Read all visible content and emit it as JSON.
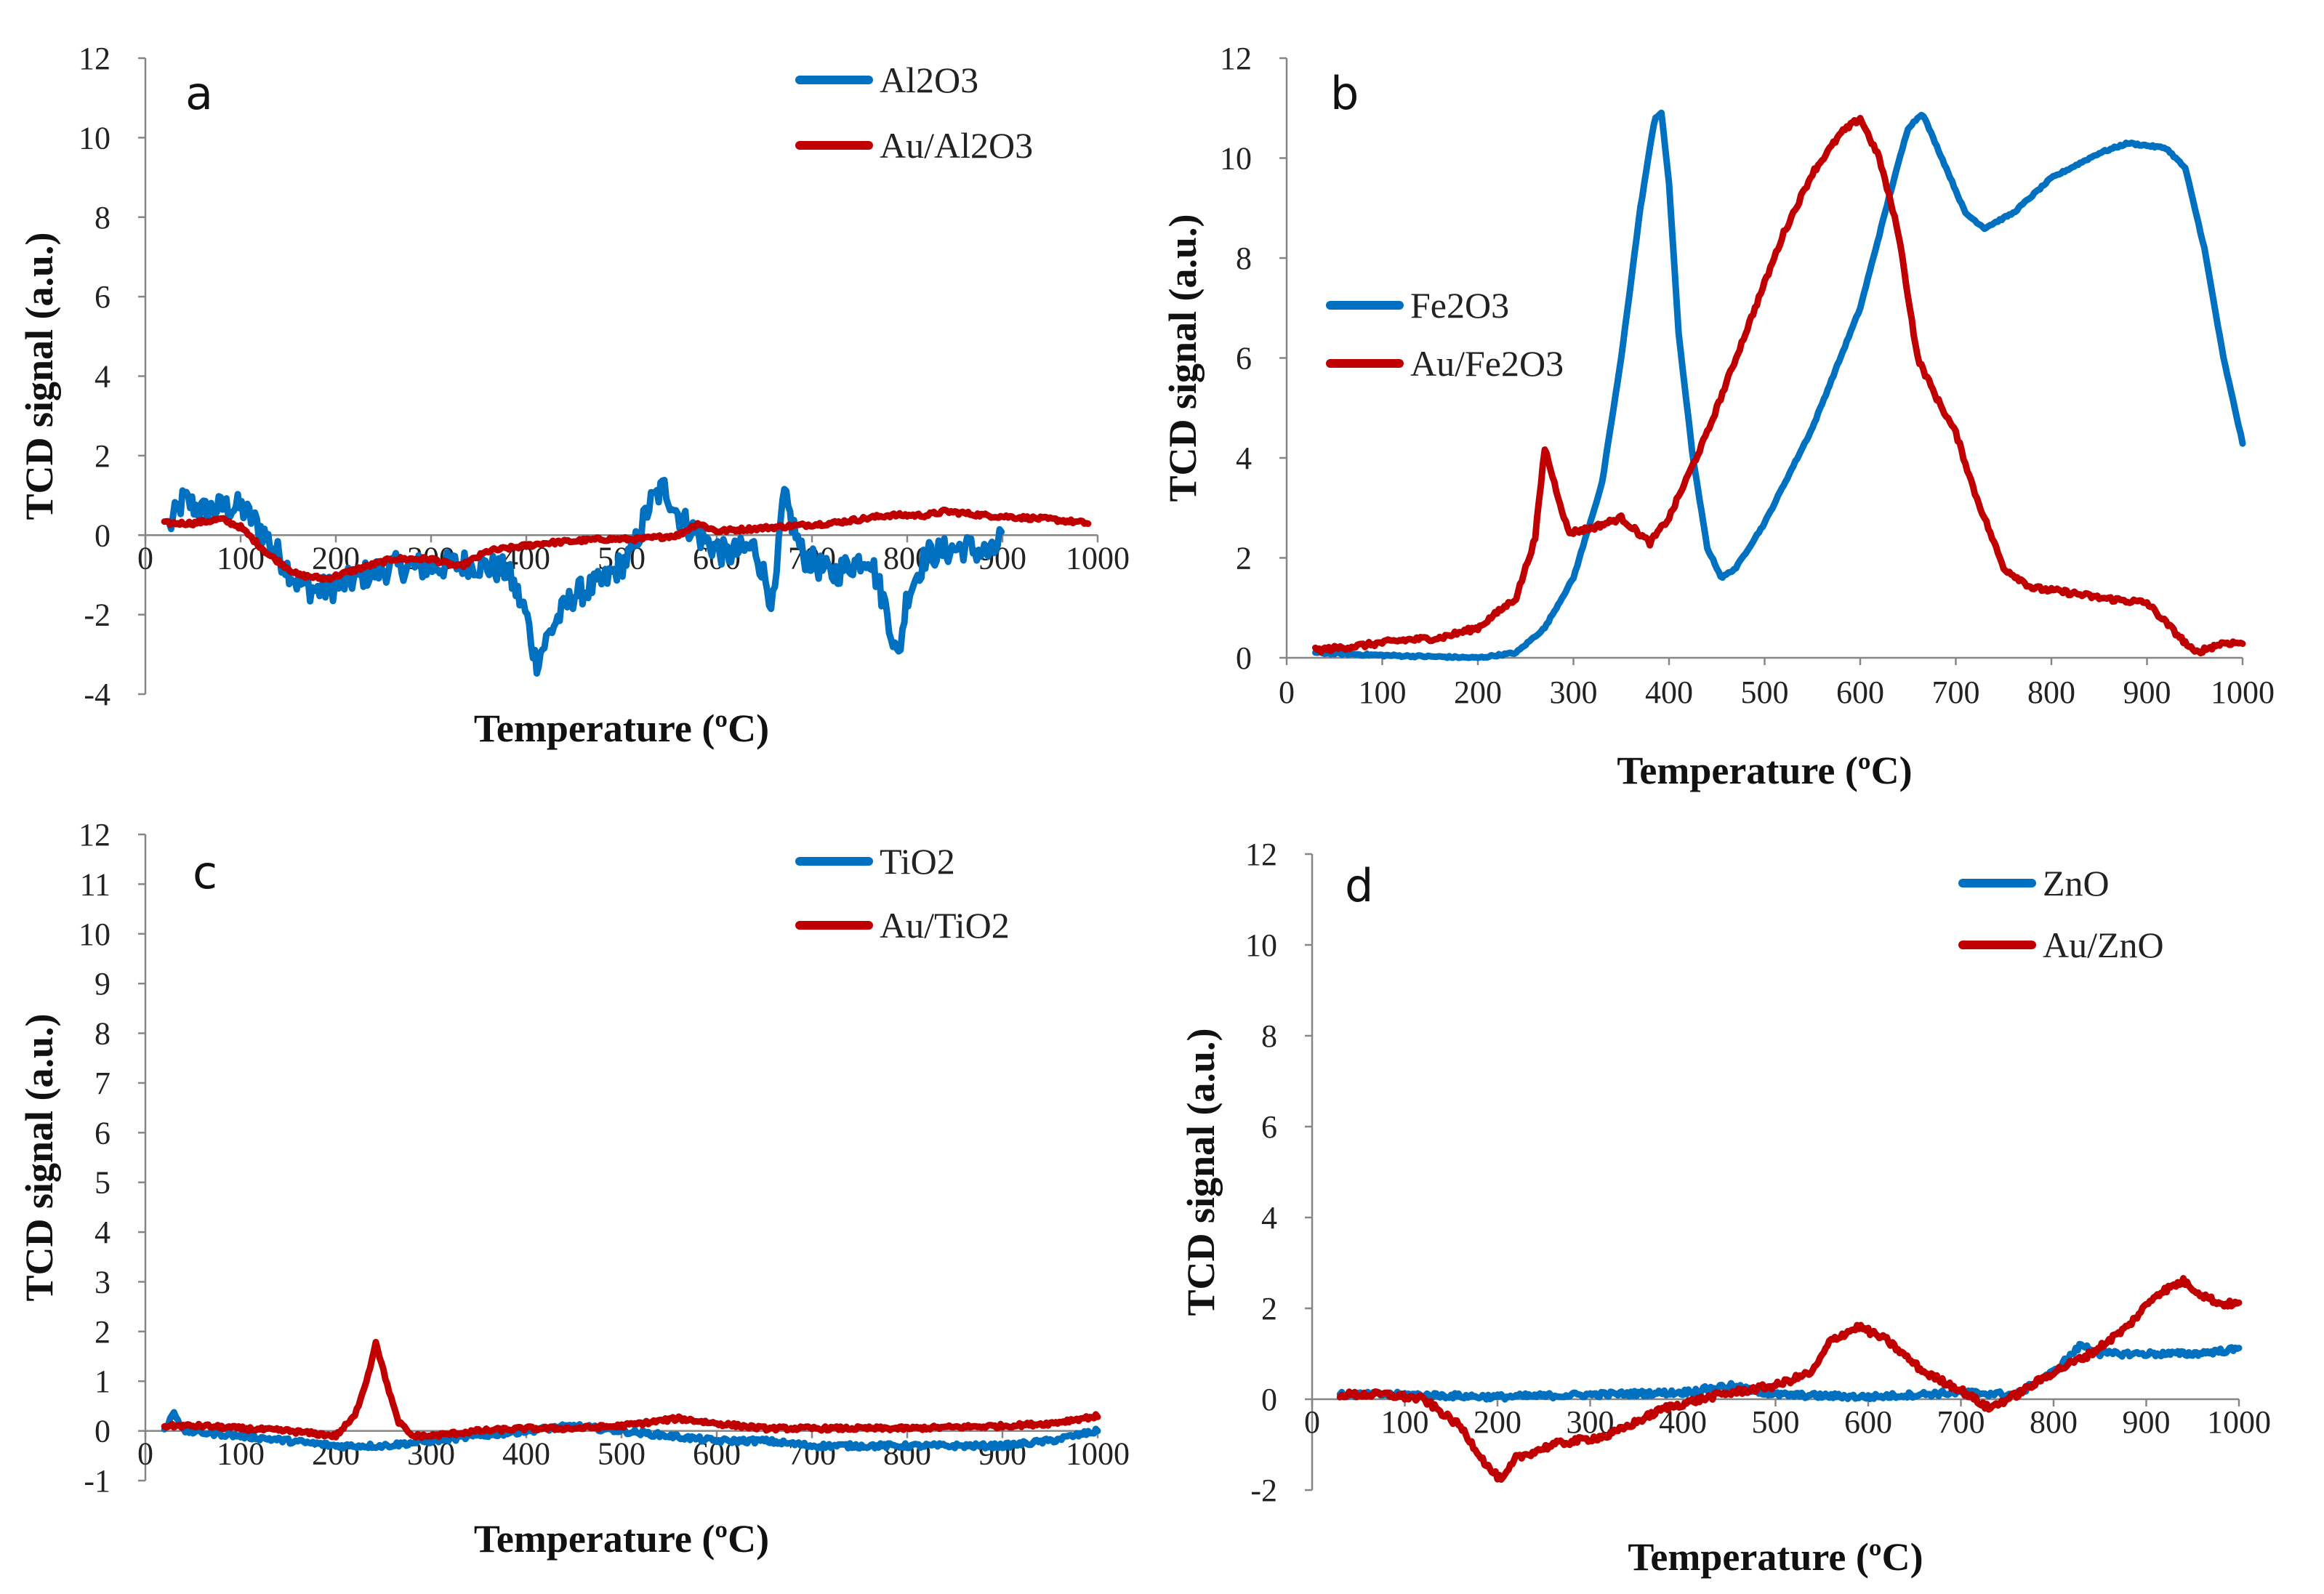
{
  "colors": {
    "blue": "#0070C0",
    "red": "#C00000",
    "axis": "#868686"
  },
  "chart_data": [
    {
      "panel": "a",
      "type": "line",
      "xlabel": "Temperature (ºC)",
      "ylabel": "TCD signal (a.u.)",
      "xlim": [
        0,
        1000
      ],
      "ylim": [
        -4,
        12
      ],
      "x_ticks": [
        0,
        100,
        200,
        300,
        400,
        500,
        600,
        700,
        800,
        900,
        1000
      ],
      "y_ticks": [
        -4,
        -2,
        0,
        2,
        4,
        6,
        8,
        10,
        12
      ],
      "legend_position": "top-right",
      "series": [
        {
          "name": "Al2O3",
          "color": "blue",
          "noise": 0.35,
          "points": [
            [
              25,
              0.2
            ],
            [
              40,
              0.9
            ],
            [
              60,
              0.6
            ],
            [
              80,
              0.7
            ],
            [
              100,
              0.7
            ],
            [
              120,
              0.2
            ],
            [
              140,
              -0.5
            ],
            [
              160,
              -1.2
            ],
            [
              180,
              -1.4
            ],
            [
              200,
              -1.3
            ],
            [
              230,
              -1.0
            ],
            [
              260,
              -0.8
            ],
            [
              300,
              -0.8
            ],
            [
              340,
              -0.7
            ],
            [
              380,
              -0.9
            ],
            [
              400,
              -2.0
            ],
            [
              410,
              -3.2
            ],
            [
              430,
              -2.2
            ],
            [
              450,
              -1.5
            ],
            [
              480,
              -1.2
            ],
            [
              510,
              -0.5
            ],
            [
              530,
              0.8
            ],
            [
              545,
              1.2
            ],
            [
              560,
              0.5
            ],
            [
              580,
              0.0
            ],
            [
              610,
              -0.5
            ],
            [
              640,
              -0.3
            ],
            [
              660,
              -1.8
            ],
            [
              670,
              1.0
            ],
            [
              690,
              -0.5
            ],
            [
              720,
              -1.0
            ],
            [
              760,
              -0.5
            ],
            [
              780,
              -2.0
            ],
            [
              790,
              -3.2
            ],
            [
              800,
              -1.5
            ],
            [
              820,
              -0.5
            ],
            [
              860,
              -0.3
            ],
            [
              890,
              -0.5
            ],
            [
              900,
              0.1
            ]
          ]
        },
        {
          "name": "Au/Al2O3",
          "color": "red",
          "noise": 0.05,
          "points": [
            [
              20,
              0.3
            ],
            [
              50,
              0.3
            ],
            [
              80,
              0.4
            ],
            [
              100,
              0.2
            ],
            [
              130,
              -0.5
            ],
            [
              160,
              -1.0
            ],
            [
              190,
              -1.1
            ],
            [
              230,
              -0.8
            ],
            [
              260,
              -0.6
            ],
            [
              300,
              -0.6
            ],
            [
              330,
              -0.8
            ],
            [
              360,
              -0.4
            ],
            [
              420,
              -0.2
            ],
            [
              480,
              -0.1
            ],
            [
              520,
              -0.1
            ],
            [
              560,
              0.0
            ],
            [
              580,
              0.3
            ],
            [
              600,
              0.1
            ],
            [
              660,
              0.2
            ],
            [
              720,
              0.3
            ],
            [
              780,
              0.5
            ],
            [
              820,
              0.5
            ],
            [
              840,
              0.6
            ],
            [
              880,
              0.5
            ],
            [
              950,
              0.4
            ],
            [
              990,
              0.3
            ]
          ]
        }
      ]
    },
    {
      "panel": "b",
      "type": "line",
      "xlabel": "Temperature (ºC)",
      "ylabel": "TCD signal (a.u.)",
      "xlim": [
        0,
        1000
      ],
      "ylim": [
        0,
        12
      ],
      "x_ticks": [
        0,
        100,
        200,
        300,
        400,
        500,
        600,
        700,
        800,
        900,
        1000
      ],
      "y_ticks": [
        0,
        2,
        4,
        6,
        8,
        10,
        12
      ],
      "legend_position": "middle-left",
      "series": [
        {
          "name": "Fe2O3",
          "color": "blue",
          "noise": 0.02,
          "points": [
            [
              30,
              0.1
            ],
            [
              100,
              0.05
            ],
            [
              200,
              0.0
            ],
            [
              240,
              0.1
            ],
            [
              270,
              0.6
            ],
            [
              300,
              1.6
            ],
            [
              330,
              3.5
            ],
            [
              350,
              6.0
            ],
            [
              370,
              9.0
            ],
            [
              385,
              10.8
            ],
            [
              392,
              10.9
            ],
            [
              400,
              9.5
            ],
            [
              410,
              6.5
            ],
            [
              425,
              4.0
            ],
            [
              440,
              2.2
            ],
            [
              455,
              1.6
            ],
            [
              470,
              1.8
            ],
            [
              500,
              2.7
            ],
            [
              550,
              4.6
            ],
            [
              600,
              7.0
            ],
            [
              630,
              9.2
            ],
            [
              650,
              10.6
            ],
            [
              665,
              10.9
            ],
            [
              690,
              9.8
            ],
            [
              710,
              8.9
            ],
            [
              730,
              8.6
            ],
            [
              760,
              8.9
            ],
            [
              800,
              9.6
            ],
            [
              850,
              10.1
            ],
            [
              880,
              10.3
            ],
            [
              920,
              10.2
            ],
            [
              940,
              9.8
            ],
            [
              960,
              8.2
            ],
            [
              980,
              6.0
            ],
            [
              1000,
              4.3
            ]
          ]
        },
        {
          "name": "Au/Fe2O3",
          "color": "red",
          "noise": 0.05,
          "points": [
            [
              30,
              0.15
            ],
            [
              80,
              0.25
            ],
            [
              120,
              0.35
            ],
            [
              160,
              0.4
            ],
            [
              200,
              0.6
            ],
            [
              240,
              1.2
            ],
            [
              260,
              2.4
            ],
            [
              270,
              4.2
            ],
            [
              280,
              3.5
            ],
            [
              295,
              2.5
            ],
            [
              320,
              2.6
            ],
            [
              350,
              2.8
            ],
            [
              380,
              2.3
            ],
            [
              400,
              2.8
            ],
            [
              440,
              4.5
            ],
            [
              480,
              6.5
            ],
            [
              520,
              8.5
            ],
            [
              550,
              9.7
            ],
            [
              580,
              10.5
            ],
            [
              600,
              10.8
            ],
            [
              620,
              10.0
            ],
            [
              640,
              8.5
            ],
            [
              660,
              6.0
            ],
            [
              680,
              5.2
            ],
            [
              700,
              4.5
            ],
            [
              720,
              3.3
            ],
            [
              750,
              1.8
            ],
            [
              780,
              1.4
            ],
            [
              820,
              1.3
            ],
            [
              850,
              1.2
            ],
            [
              900,
              1.1
            ],
            [
              930,
              0.5
            ],
            [
              950,
              0.1
            ],
            [
              980,
              0.3
            ],
            [
              1000,
              0.3
            ]
          ]
        }
      ]
    },
    {
      "panel": "c",
      "type": "line",
      "xlabel": "Temperature (ºC)",
      "ylabel": "TCD signal (a.u.)",
      "xlim": [
        0,
        1000
      ],
      "ylim": [
        -1,
        12
      ],
      "x_ticks": [
        0,
        100,
        200,
        300,
        400,
        500,
        600,
        700,
        800,
        900,
        1000
      ],
      "y_ticks": [
        -1,
        0,
        1,
        2,
        3,
        4,
        5,
        6,
        7,
        8,
        9,
        10,
        11,
        12
      ],
      "legend_position": "top-right",
      "series": [
        {
          "name": "TiO2",
          "color": "blue",
          "noise": 0.05,
          "points": [
            [
              20,
              0.0
            ],
            [
              30,
              0.4
            ],
            [
              40,
              0.0
            ],
            [
              100,
              -0.1
            ],
            [
              150,
              -0.2
            ],
            [
              200,
              -0.3
            ],
            [
              250,
              -0.3
            ],
            [
              300,
              -0.2
            ],
            [
              350,
              -0.1
            ],
            [
              400,
              0.0
            ],
            [
              450,
              0.1
            ],
            [
              500,
              0.0
            ],
            [
              550,
              -0.1
            ],
            [
              600,
              -0.2
            ],
            [
              650,
              -0.2
            ],
            [
              700,
              -0.3
            ],
            [
              800,
              -0.3
            ],
            [
              900,
              -0.3
            ],
            [
              950,
              -0.2
            ],
            [
              1000,
              0.0
            ]
          ]
        },
        {
          "name": "Au/TiO2",
          "color": "red",
          "noise": 0.04,
          "points": [
            [
              20,
              0.1
            ],
            [
              60,
              0.1
            ],
            [
              100,
              0.05
            ],
            [
              150,
              0.0
            ],
            [
              200,
              -0.1
            ],
            [
              220,
              0.3
            ],
            [
              235,
              1.2
            ],
            [
              242,
              1.8
            ],
            [
              250,
              1.2
            ],
            [
              265,
              0.2
            ],
            [
              280,
              -0.1
            ],
            [
              300,
              -0.1
            ],
            [
              350,
              0.0
            ],
            [
              400,
              0.05
            ],
            [
              450,
              0.05
            ],
            [
              500,
              0.1
            ],
            [
              560,
              0.25
            ],
            [
              600,
              0.15
            ],
            [
              650,
              0.05
            ],
            [
              700,
              0.05
            ],
            [
              800,
              0.05
            ],
            [
              900,
              0.1
            ],
            [
              950,
              0.15
            ],
            [
              1000,
              0.3
            ]
          ]
        }
      ]
    },
    {
      "panel": "d",
      "type": "line",
      "xlabel": "Temperature (ºC)",
      "ylabel": "TCD signal (a.u.)",
      "xlim": [
        0,
        1000
      ],
      "ylim": [
        -2,
        12
      ],
      "x_ticks": [
        0,
        100,
        200,
        300,
        400,
        500,
        600,
        700,
        800,
        900,
        1000
      ],
      "y_ticks": [
        -2,
        0,
        2,
        4,
        6,
        8,
        10,
        12
      ],
      "legend_position": "top-right",
      "series": [
        {
          "name": "ZnO",
          "color": "blue",
          "noise": 0.06,
          "points": [
            [
              30,
              0.1
            ],
            [
              100,
              0.1
            ],
            [
              200,
              0.05
            ],
            [
              300,
              0.1
            ],
            [
              400,
              0.15
            ],
            [
              450,
              0.3
            ],
            [
              500,
              0.1
            ],
            [
              600,
              0.05
            ],
            [
              700,
              0.15
            ],
            [
              760,
              0.1
            ],
            [
              800,
              0.6
            ],
            [
              830,
              1.2
            ],
            [
              850,
              1.0
            ],
            [
              900,
              1.0
            ],
            [
              950,
              1.0
            ],
            [
              1000,
              1.1
            ]
          ]
        },
        {
          "name": "Au/ZnO",
          "color": "red",
          "noise": 0.07,
          "points": [
            [
              30,
              0.1
            ],
            [
              80,
              0.1
            ],
            [
              120,
              0.0
            ],
            [
              160,
              -0.6
            ],
            [
              190,
              -1.5
            ],
            [
              205,
              -1.8
            ],
            [
              220,
              -1.3
            ],
            [
              260,
              -1.0
            ],
            [
              320,
              -0.8
            ],
            [
              380,
              -0.2
            ],
            [
              440,
              0.1
            ],
            [
              500,
              0.3
            ],
            [
              540,
              0.6
            ],
            [
              560,
              1.3
            ],
            [
              590,
              1.6
            ],
            [
              620,
              1.3
            ],
            [
              660,
              0.6
            ],
            [
              700,
              0.2
            ],
            [
              730,
              -0.2
            ],
            [
              760,
              0.1
            ],
            [
              800,
              0.6
            ],
            [
              840,
              1.0
            ],
            [
              880,
              1.6
            ],
            [
              910,
              2.3
            ],
            [
              940,
              2.6
            ],
            [
              960,
              2.3
            ],
            [
              980,
              2.1
            ],
            [
              1000,
              2.1
            ]
          ]
        }
      ]
    }
  ]
}
